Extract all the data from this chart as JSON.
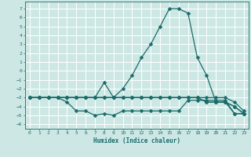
{
  "xlabel": "Humidex (Indice chaleur)",
  "background_color": "#cde8e4",
  "grid_color": "#ffffff",
  "line_color": "#1a6b6b",
  "xlim": [
    -0.5,
    23.5
  ],
  "ylim": [
    -6.5,
    7.8
  ],
  "xticks": [
    0,
    1,
    2,
    3,
    4,
    5,
    6,
    7,
    8,
    9,
    10,
    11,
    12,
    13,
    14,
    15,
    16,
    17,
    18,
    19,
    20,
    21,
    22,
    23
  ],
  "yticks": [
    -6,
    -5,
    -4,
    -3,
    -2,
    -1,
    0,
    1,
    2,
    3,
    4,
    5,
    6,
    7
  ],
  "series_main_x": [
    0,
    1,
    2,
    3,
    4,
    5,
    6,
    7,
    8,
    9,
    10,
    11,
    12,
    13,
    14,
    15,
    16,
    17,
    18,
    19,
    20,
    21,
    22,
    23
  ],
  "series_main_y": [
    -3.0,
    -3.0,
    -3.0,
    -3.0,
    -3.0,
    -3.0,
    -3.0,
    -3.0,
    -3.0,
    -3.0,
    -2.0,
    -0.5,
    1.5,
    3.0,
    5.0,
    7.0,
    7.0,
    6.5,
    1.5,
    -0.5,
    -3.5,
    -3.5,
    -4.8,
    -4.8
  ],
  "series_jagged_x": [
    0,
    1,
    2,
    3,
    4,
    5,
    6,
    7,
    8,
    9,
    10,
    11,
    12,
    13,
    14,
    15,
    16,
    17,
    18,
    19,
    20,
    21,
    22,
    23
  ],
  "series_jagged_y": [
    -3.0,
    -3.0,
    -3.0,
    -3.0,
    -3.5,
    -4.5,
    -4.5,
    -5.0,
    -4.8,
    -5.0,
    -4.5,
    -4.5,
    -4.5,
    -4.5,
    -4.5,
    -4.5,
    -4.5,
    -3.3,
    -3.3,
    -3.3,
    -3.3,
    -3.3,
    -4.8,
    -4.8
  ],
  "series_flat1_x": [
    0,
    1,
    2,
    3,
    4,
    5,
    6,
    7,
    8,
    9,
    10,
    11,
    12,
    13,
    14,
    15,
    16,
    17,
    18,
    19,
    20,
    21,
    22,
    23
  ],
  "series_flat1_y": [
    -3.0,
    -3.0,
    -3.0,
    -3.0,
    -3.0,
    -3.0,
    -3.0,
    -3.0,
    -3.0,
    -3.0,
    -3.0,
    -3.0,
    -3.0,
    -3.0,
    -3.0,
    -3.0,
    -3.0,
    -3.0,
    -3.0,
    -3.0,
    -3.0,
    -3.0,
    -3.5,
    -4.5
  ],
  "series_flat2_x": [
    0,
    1,
    2,
    3,
    4,
    5,
    6,
    7,
    8,
    9,
    10,
    11,
    12,
    13,
    14,
    15,
    16,
    17,
    18,
    19,
    20,
    21,
    22,
    23
  ],
  "series_flat2_y": [
    -3.0,
    -3.0,
    -3.0,
    -3.0,
    -3.0,
    -3.0,
    -3.0,
    -3.0,
    -3.0,
    -3.0,
    -3.0,
    -3.0,
    -3.0,
    -3.0,
    -3.0,
    -3.0,
    -3.0,
    -3.0,
    -3.0,
    -3.5,
    -3.5,
    -3.5,
    -4.0,
    -4.8
  ],
  "series_spike_x": [
    0,
    1,
    2,
    3,
    4,
    5,
    6,
    7,
    8,
    9,
    10,
    11,
    12,
    13,
    14,
    15,
    16,
    17,
    18,
    19,
    20,
    21,
    22,
    23
  ],
  "series_spike_y": [
    -3.0,
    -3.0,
    -3.0,
    -3.0,
    -3.0,
    -3.0,
    -3.0,
    -3.0,
    -1.3,
    -3.0,
    -3.0,
    -3.0,
    -3.0,
    -3.0,
    -3.0,
    -3.0,
    -3.0,
    -3.0,
    -3.0,
    -3.5,
    -3.5,
    -3.5,
    -4.0,
    -4.8
  ]
}
